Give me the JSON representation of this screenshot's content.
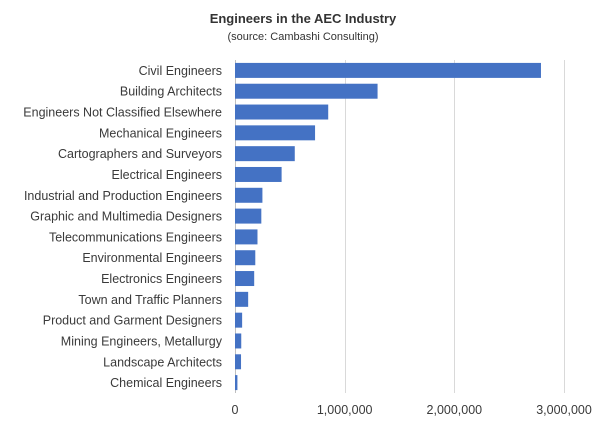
{
  "chart_data": {
    "type": "bar",
    "orientation": "horizontal",
    "title": "Engineers in the AEC Industry",
    "subtitle": "(source: Cambashi Consulting)",
    "xlabel": "",
    "ylabel": "",
    "categories": [
      "Civil Engineers",
      "Building Architects",
      "Engineers Not Classified Elsewhere",
      "Mechanical Engineers",
      "Cartographers and Surveyors",
      "Electrical Engineers",
      "Industrial and Production Engineers",
      "Graphic and Multimedia Designers",
      "Telecommunications Engineers",
      "Environmental Engineers",
      "Electronics Engineers",
      "Town and Traffic Planners",
      "Product and Garment Designers",
      "Mining Engineers, Metallurgy",
      "Landscape Architects",
      "Chemical Engineers"
    ],
    "values": [
      2790000,
      1300000,
      850000,
      730000,
      545000,
      425000,
      250000,
      240000,
      205000,
      185000,
      175000,
      120000,
      65000,
      57000,
      55000,
      22000
    ],
    "xlim": [
      0,
      3000000
    ],
    "xticks": [
      0,
      1000000,
      2000000,
      3000000
    ],
    "xtick_labels": [
      "0",
      "1,000,000",
      "2,000,000",
      "3,000,000"
    ],
    "grid": true,
    "legend": "none",
    "bar_color": "#4472c4"
  }
}
